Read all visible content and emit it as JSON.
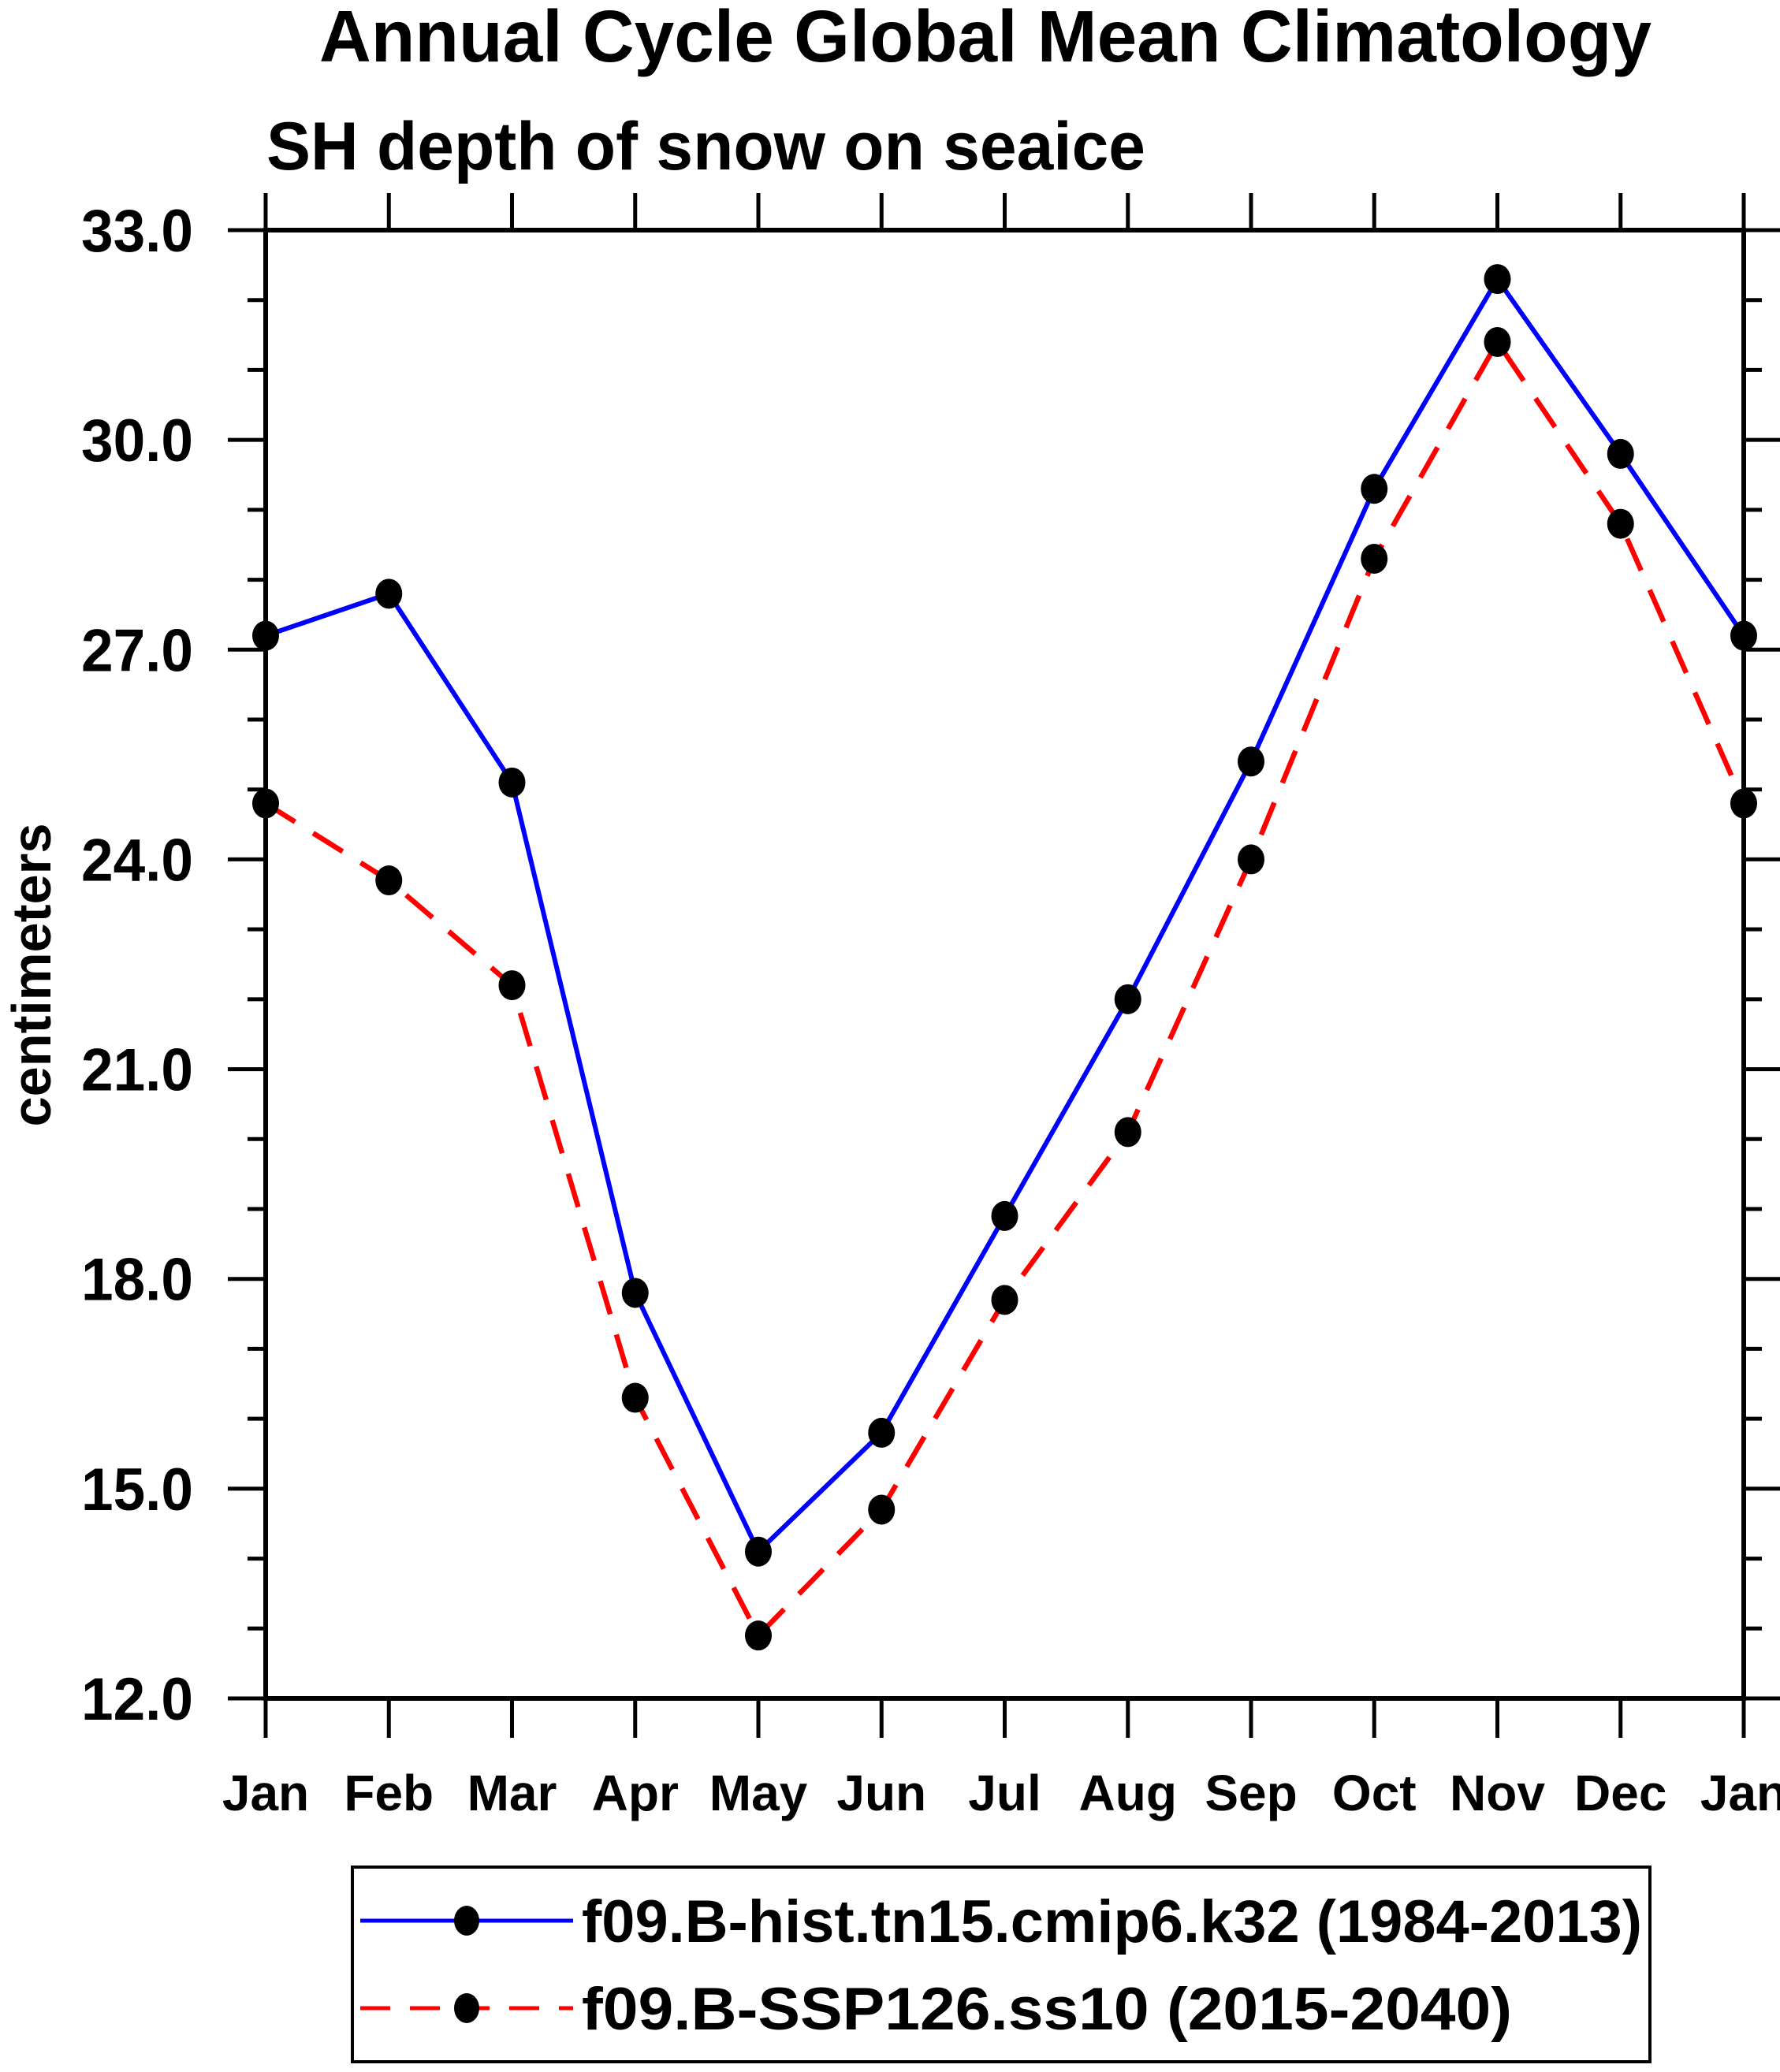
{
  "page": {
    "background": "#ffffff"
  },
  "chart_data": {
    "type": "line",
    "title": "Annual Cycle Global Mean Climatology",
    "subtitle": "SH depth of snow on seaice",
    "ylabel": "centimeters",
    "xlabel": "",
    "categories": [
      "Jan",
      "Feb",
      "Mar",
      "Apr",
      "May",
      "Jun",
      "Jul",
      "Aug",
      "Sep",
      "Oct",
      "Nov",
      "Dec",
      "Jan"
    ],
    "ylim": [
      12.0,
      33.0
    ],
    "ytick_major_interval": 3.0,
    "ytick_minor_interval": 1.0,
    "ytick_labels": [
      "12.0",
      "15.0",
      "18.0",
      "21.0",
      "24.0",
      "27.0",
      "30.0",
      "33.0"
    ],
    "grid": false,
    "legend_position": "bottom-box",
    "axis_color": "#000000",
    "marker_color": "#000000",
    "series": [
      {
        "name": "f09.B-hist.tn15.cmip6.k32 (1984-2013)",
        "color": "#0000ff",
        "line_style": "solid",
        "marker": "filled-circle",
        "values": [
          27.2,
          27.8,
          25.1,
          17.8,
          14.1,
          15.8,
          18.9,
          22.0,
          25.4,
          29.3,
          32.3,
          29.8,
          27.2
        ]
      },
      {
        "name": "f09.B-SSP126.ss10 (2015-2040)",
        "color": "#ff0000",
        "line_style": "dashed",
        "marker": "filled-circle",
        "values": [
          24.8,
          23.7,
          22.2,
          16.3,
          12.9,
          14.7,
          17.7,
          20.1,
          24.0,
          28.3,
          31.4,
          28.8,
          24.8
        ]
      }
    ]
  }
}
